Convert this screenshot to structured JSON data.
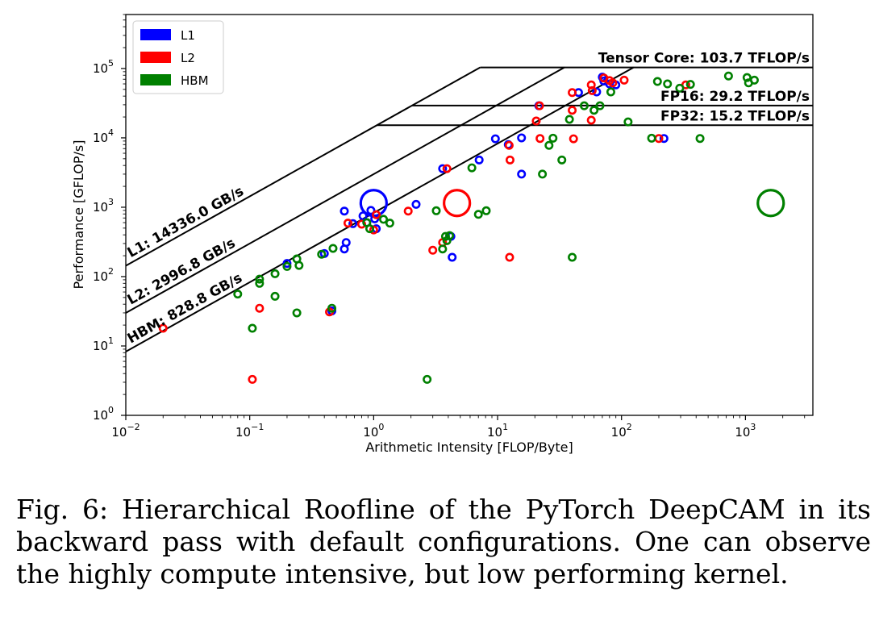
{
  "chart_data": {
    "type": "scatter",
    "xlabel": "Arithmetic Intensity [FLOP/Byte]",
    "ylabel": "Performance [GFLOP/s]",
    "xscale": "log",
    "yscale": "log",
    "xlim": [
      0.01,
      3500
    ],
    "ylim": [
      1,
      600000
    ],
    "x_ticks": [
      {
        "value": 0.01,
        "base": "10",
        "exp": "−2"
      },
      {
        "value": 0.1,
        "base": "10",
        "exp": "−1"
      },
      {
        "value": 1,
        "base": "10",
        "exp": "0"
      },
      {
        "value": 10,
        "base": "10",
        "exp": "1"
      },
      {
        "value": 100,
        "base": "10",
        "exp": "2"
      },
      {
        "value": 1000,
        "base": "10",
        "exp": "3"
      }
    ],
    "y_ticks": [
      {
        "value": 1,
        "base": "10",
        "exp": "0"
      },
      {
        "value": 10,
        "base": "10",
        "exp": "1"
      },
      {
        "value": 100,
        "base": "10",
        "exp": "2"
      },
      {
        "value": 1000,
        "base": "10",
        "exp": "3"
      },
      {
        "value": 10000,
        "base": "10",
        "exp": "4"
      },
      {
        "value": 100000,
        "base": "10",
        "exp": "5"
      }
    ],
    "grid": false,
    "legend_position": "top-left",
    "roofs": [
      {
        "label": "L1: 14336.0 GB/s",
        "bandwidth": 14336.0
      },
      {
        "label": "L2: 2996.8 GB/s",
        "bandwidth": 2996.8
      },
      {
        "label": "HBM: 828.8 GB/s",
        "bandwidth": 828.8
      }
    ],
    "ceilings": [
      {
        "label": "Tensor Core: 103.7 TFLOP/s",
        "gflops": 103700
      },
      {
        "label": "FP16: 29.2 TFLOP/s",
        "gflops": 29200
      },
      {
        "label": "FP32: 15.2 TFLOP/s",
        "gflops": 15200
      }
    ],
    "series": [
      {
        "name": "L1",
        "color": "#0000ff",
        "points": [
          [
            0.2,
            155
          ],
          [
            0.4,
            215
          ],
          [
            0.46,
            32
          ],
          [
            0.58,
            250
          ],
          [
            0.6,
            310
          ],
          [
            0.58,
            880
          ],
          [
            0.68,
            580
          ],
          [
            0.82,
            750
          ],
          [
            0.88,
            600
          ],
          [
            0.95,
            900
          ],
          [
            1.02,
            680
          ],
          [
            1.05,
            490
          ],
          [
            2.2,
            1100
          ],
          [
            3.6,
            3600
          ],
          [
            4.3,
            190
          ],
          [
            4.2,
            380
          ],
          [
            7.1,
            4800
          ],
          [
            9.6,
            9700
          ],
          [
            12.2,
            8000
          ],
          [
            15.6,
            3000
          ],
          [
            15.6,
            10000
          ],
          [
            21.5,
            29000
          ],
          [
            45.0,
            45000
          ],
          [
            63.0,
            46000
          ],
          [
            70.0,
            75000
          ],
          [
            72.0,
            66000
          ],
          [
            80.0,
            60000
          ],
          [
            90.0,
            58000
          ],
          [
            220.0,
            9800
          ]
        ],
        "highlight": {
          "x": 1.0,
          "y": 1150
        }
      },
      {
        "name": "L2",
        "color": "#ff0000",
        "points": [
          [
            0.02,
            18
          ],
          [
            0.105,
            3.3
          ],
          [
            0.12,
            35
          ],
          [
            0.44,
            31
          ],
          [
            0.62,
            590
          ],
          [
            0.8,
            570
          ],
          [
            1.0,
            470
          ],
          [
            1.05,
            780
          ],
          [
            1.9,
            880
          ],
          [
            3.0,
            240
          ],
          [
            3.6,
            310
          ],
          [
            3.9,
            3600
          ],
          [
            12.5,
            190
          ],
          [
            12.4,
            7800
          ],
          [
            12.6,
            4800
          ],
          [
            20.5,
            17500
          ],
          [
            21.8,
            29000
          ],
          [
            22.0,
            9800
          ],
          [
            40.0,
            45000
          ],
          [
            40.0,
            25000
          ],
          [
            41.0,
            9700
          ],
          [
            57.0,
            18000
          ],
          [
            57.0,
            58000
          ],
          [
            58.0,
            48000
          ],
          [
            72.0,
            73000
          ],
          [
            80.0,
            67000
          ],
          [
            85.0,
            62000
          ],
          [
            105.0,
            68000
          ],
          [
            200.0,
            9800
          ],
          [
            330.0,
            58000
          ]
        ],
        "highlight": {
          "x": 4.7,
          "y": 1150
        }
      },
      {
        "name": "HBM",
        "color": "#008000",
        "points": [
          [
            0.08,
            56
          ],
          [
            0.105,
            18
          ],
          [
            0.12,
            80
          ],
          [
            0.12,
            92
          ],
          [
            0.16,
            52
          ],
          [
            0.16,
            110
          ],
          [
            0.2,
            140
          ],
          [
            0.24,
            180
          ],
          [
            0.24,
            30
          ],
          [
            0.25,
            145
          ],
          [
            0.38,
            210
          ],
          [
            0.47,
            255
          ],
          [
            0.46,
            35
          ],
          [
            0.88,
            600
          ],
          [
            0.93,
            490
          ],
          [
            1.2,
            670
          ],
          [
            1.35,
            590
          ],
          [
            2.7,
            3.3
          ],
          [
            3.2,
            890
          ],
          [
            3.6,
            250
          ],
          [
            3.8,
            380
          ],
          [
            3.9,
            330
          ],
          [
            4.1,
            390
          ],
          [
            6.2,
            3700
          ],
          [
            7.0,
            790
          ],
          [
            8.1,
            890
          ],
          [
            23.0,
            3000
          ],
          [
            26.0,
            7800
          ],
          [
            28.0,
            9900
          ],
          [
            33.0,
            4800
          ],
          [
            38.0,
            18500
          ],
          [
            40.0,
            190
          ],
          [
            50.0,
            29000
          ],
          [
            60.0,
            25000
          ],
          [
            67.0,
            29000
          ],
          [
            82.0,
            46000
          ],
          [
            113.0,
            17000
          ],
          [
            175.0,
            9900
          ],
          [
            195.0,
            65000
          ],
          [
            235.0,
            60000
          ],
          [
            295.0,
            52000
          ],
          [
            360.0,
            59000
          ],
          [
            430.0,
            9800
          ],
          [
            730.0,
            78000
          ],
          [
            1030.0,
            74000
          ],
          [
            1060.0,
            62000
          ],
          [
            1180.0,
            68000
          ]
        ],
        "highlight": {
          "x": 1600.0,
          "y": 1150
        }
      }
    ]
  },
  "caption": "Fig. 6: Hierarchical Roofline of the PyTorch DeepCAM in its backward pass with default configurations. One can observe the highly compute intensive, but low performing kernel."
}
